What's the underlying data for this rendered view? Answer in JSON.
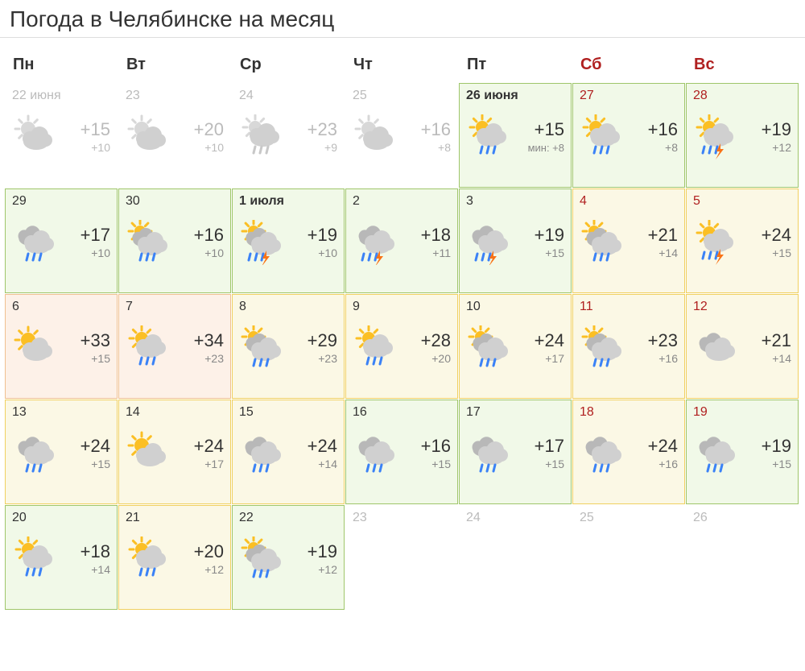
{
  "title": "Погода в Челябинске на месяц",
  "colors": {
    "title": "#333333",
    "weekday_header": "#333333",
    "weekend_header": "#b02020",
    "date_text": "#333333",
    "date_weekend": "#b02020",
    "past_text": "#bbbbbb",
    "hi_temp": "#333333",
    "lo_temp": "#888888",
    "bg_green": "#f1f9e8",
    "border_green": "#9fc66a",
    "bg_yellow": "#fbf8e5",
    "border_yellow": "#f0d060",
    "bg_orange": "#fdf1e8",
    "border_orange": "#f0c090",
    "sun": "#fbbf24",
    "cloud_light": "#d0d0d0",
    "cloud_dark": "#b8b8b8",
    "rain": "#3b82f6",
    "lightning": "#f97316"
  },
  "weekdays": [
    {
      "label": "Пн",
      "weekend": false
    },
    {
      "label": "Вт",
      "weekend": false
    },
    {
      "label": "Ср",
      "weekend": false
    },
    {
      "label": "Чт",
      "weekend": false
    },
    {
      "label": "Пт",
      "weekend": false
    },
    {
      "label": "Сб",
      "weekend": true
    },
    {
      "label": "Вс",
      "weekend": true
    }
  ],
  "cells": [
    {
      "date": "22 июня",
      "weekend": false,
      "bold": false,
      "state": "past",
      "icon": "sun-cloud",
      "hi": "+15",
      "lo": "+10",
      "lo_prefix": ""
    },
    {
      "date": "23",
      "weekend": false,
      "bold": false,
      "state": "past",
      "icon": "sun-cloud",
      "hi": "+20",
      "lo": "+10",
      "lo_prefix": ""
    },
    {
      "date": "24",
      "weekend": false,
      "bold": false,
      "state": "past",
      "icon": "sun-cloud-rain",
      "hi": "+23",
      "lo": "+9",
      "lo_prefix": ""
    },
    {
      "date": "25",
      "weekend": false,
      "bold": false,
      "state": "past",
      "icon": "sun-cloud",
      "hi": "+16",
      "lo": "+8",
      "lo_prefix": ""
    },
    {
      "date": "26 июня",
      "weekend": false,
      "bold": true,
      "state": "green",
      "icon": "sun-cloud-rain-c",
      "hi": "+15",
      "lo": "+8",
      "lo_prefix": "мин: "
    },
    {
      "date": "27",
      "weekend": true,
      "bold": false,
      "state": "green",
      "icon": "sun-cloud-rain-c",
      "hi": "+16",
      "lo": "+8",
      "lo_prefix": ""
    },
    {
      "date": "28",
      "weekend": true,
      "bold": false,
      "state": "green",
      "icon": "sun-cloud-storm-c",
      "hi": "+19",
      "lo": "+12",
      "lo_prefix": ""
    },
    {
      "date": "29",
      "weekend": false,
      "bold": false,
      "state": "green",
      "icon": "clouds-rain",
      "hi": "+17",
      "lo": "+10",
      "lo_prefix": ""
    },
    {
      "date": "30",
      "weekend": false,
      "bold": false,
      "state": "green",
      "icon": "sun-clouds-rain-c",
      "hi": "+16",
      "lo": "+10",
      "lo_prefix": ""
    },
    {
      "date": "1 июля",
      "weekend": false,
      "bold": true,
      "state": "green",
      "icon": "sun-clouds-storm-c",
      "hi": "+19",
      "lo": "+10",
      "lo_prefix": ""
    },
    {
      "date": "2",
      "weekend": false,
      "bold": false,
      "state": "green",
      "icon": "clouds-storm",
      "hi": "+18",
      "lo": "+11",
      "lo_prefix": ""
    },
    {
      "date": "3",
      "weekend": false,
      "bold": false,
      "state": "green",
      "icon": "clouds-storm",
      "hi": "+19",
      "lo": "+15",
      "lo_prefix": ""
    },
    {
      "date": "4",
      "weekend": true,
      "bold": false,
      "state": "yellow",
      "icon": "sun-clouds-rain-c",
      "hi": "+21",
      "lo": "+14",
      "lo_prefix": ""
    },
    {
      "date": "5",
      "weekend": true,
      "bold": false,
      "state": "yellow",
      "icon": "sun-cloud-storm-c",
      "hi": "+24",
      "lo": "+15",
      "lo_prefix": ""
    },
    {
      "date": "6",
      "weekend": false,
      "bold": false,
      "state": "orange",
      "icon": "sun-cloud-c",
      "hi": "+33",
      "lo": "+15",
      "lo_prefix": ""
    },
    {
      "date": "7",
      "weekend": false,
      "bold": false,
      "state": "orange",
      "icon": "sun-cloud-rain-c",
      "hi": "+34",
      "lo": "+23",
      "lo_prefix": ""
    },
    {
      "date": "8",
      "weekend": false,
      "bold": false,
      "state": "yellow",
      "icon": "sun-clouds-rain-c",
      "hi": "+29",
      "lo": "+23",
      "lo_prefix": ""
    },
    {
      "date": "9",
      "weekend": false,
      "bold": false,
      "state": "yellow",
      "icon": "sun-cloud-rain-c",
      "hi": "+28",
      "lo": "+20",
      "lo_prefix": ""
    },
    {
      "date": "10",
      "weekend": false,
      "bold": false,
      "state": "yellow",
      "icon": "sun-clouds-rain-c",
      "hi": "+24",
      "lo": "+17",
      "lo_prefix": ""
    },
    {
      "date": "11",
      "weekend": true,
      "bold": false,
      "state": "yellow",
      "icon": "sun-clouds-rain-c",
      "hi": "+23",
      "lo": "+16",
      "lo_prefix": ""
    },
    {
      "date": "12",
      "weekend": true,
      "bold": false,
      "state": "yellow",
      "icon": "clouds",
      "hi": "+21",
      "lo": "+14",
      "lo_prefix": ""
    },
    {
      "date": "13",
      "weekend": false,
      "bold": false,
      "state": "yellow",
      "icon": "clouds-rain",
      "hi": "+24",
      "lo": "+15",
      "lo_prefix": ""
    },
    {
      "date": "14",
      "weekend": false,
      "bold": false,
      "state": "yellow",
      "icon": "sun-cloud-c",
      "hi": "+24",
      "lo": "+17",
      "lo_prefix": ""
    },
    {
      "date": "15",
      "weekend": false,
      "bold": false,
      "state": "yellow",
      "icon": "clouds-rain",
      "hi": "+24",
      "lo": "+14",
      "lo_prefix": ""
    },
    {
      "date": "16",
      "weekend": false,
      "bold": false,
      "state": "green",
      "icon": "clouds-rain",
      "hi": "+16",
      "lo": "+15",
      "lo_prefix": ""
    },
    {
      "date": "17",
      "weekend": false,
      "bold": false,
      "state": "green",
      "icon": "clouds-rain",
      "hi": "+17",
      "lo": "+15",
      "lo_prefix": ""
    },
    {
      "date": "18",
      "weekend": true,
      "bold": false,
      "state": "yellow",
      "icon": "clouds-rain",
      "hi": "+24",
      "lo": "+16",
      "lo_prefix": ""
    },
    {
      "date": "19",
      "weekend": true,
      "bold": false,
      "state": "green",
      "icon": "clouds-rain",
      "hi": "+19",
      "lo": "+15",
      "lo_prefix": ""
    },
    {
      "date": "20",
      "weekend": false,
      "bold": false,
      "state": "green",
      "icon": "sun-cloud-rain-c",
      "hi": "+18",
      "lo": "+14",
      "lo_prefix": ""
    },
    {
      "date": "21",
      "weekend": false,
      "bold": false,
      "state": "yellow",
      "icon": "sun-cloud-rain-c",
      "hi": "+20",
      "lo": "+12",
      "lo_prefix": ""
    },
    {
      "date": "22",
      "weekend": false,
      "bold": false,
      "state": "green",
      "icon": "sun-clouds-rain-c",
      "hi": "+19",
      "lo": "+12",
      "lo_prefix": ""
    },
    {
      "date": "23",
      "weekend": false,
      "bold": false,
      "state": "blank",
      "icon": "",
      "hi": "",
      "lo": "",
      "lo_prefix": ""
    },
    {
      "date": "24",
      "weekend": false,
      "bold": false,
      "state": "blank",
      "icon": "",
      "hi": "",
      "lo": "",
      "lo_prefix": ""
    },
    {
      "date": "25",
      "weekend": false,
      "bold": false,
      "state": "blank",
      "icon": "",
      "hi": "",
      "lo": "",
      "lo_prefix": ""
    },
    {
      "date": "26",
      "weekend": false,
      "bold": false,
      "state": "blank",
      "icon": "",
      "hi": "",
      "lo": "",
      "lo_prefix": ""
    }
  ]
}
